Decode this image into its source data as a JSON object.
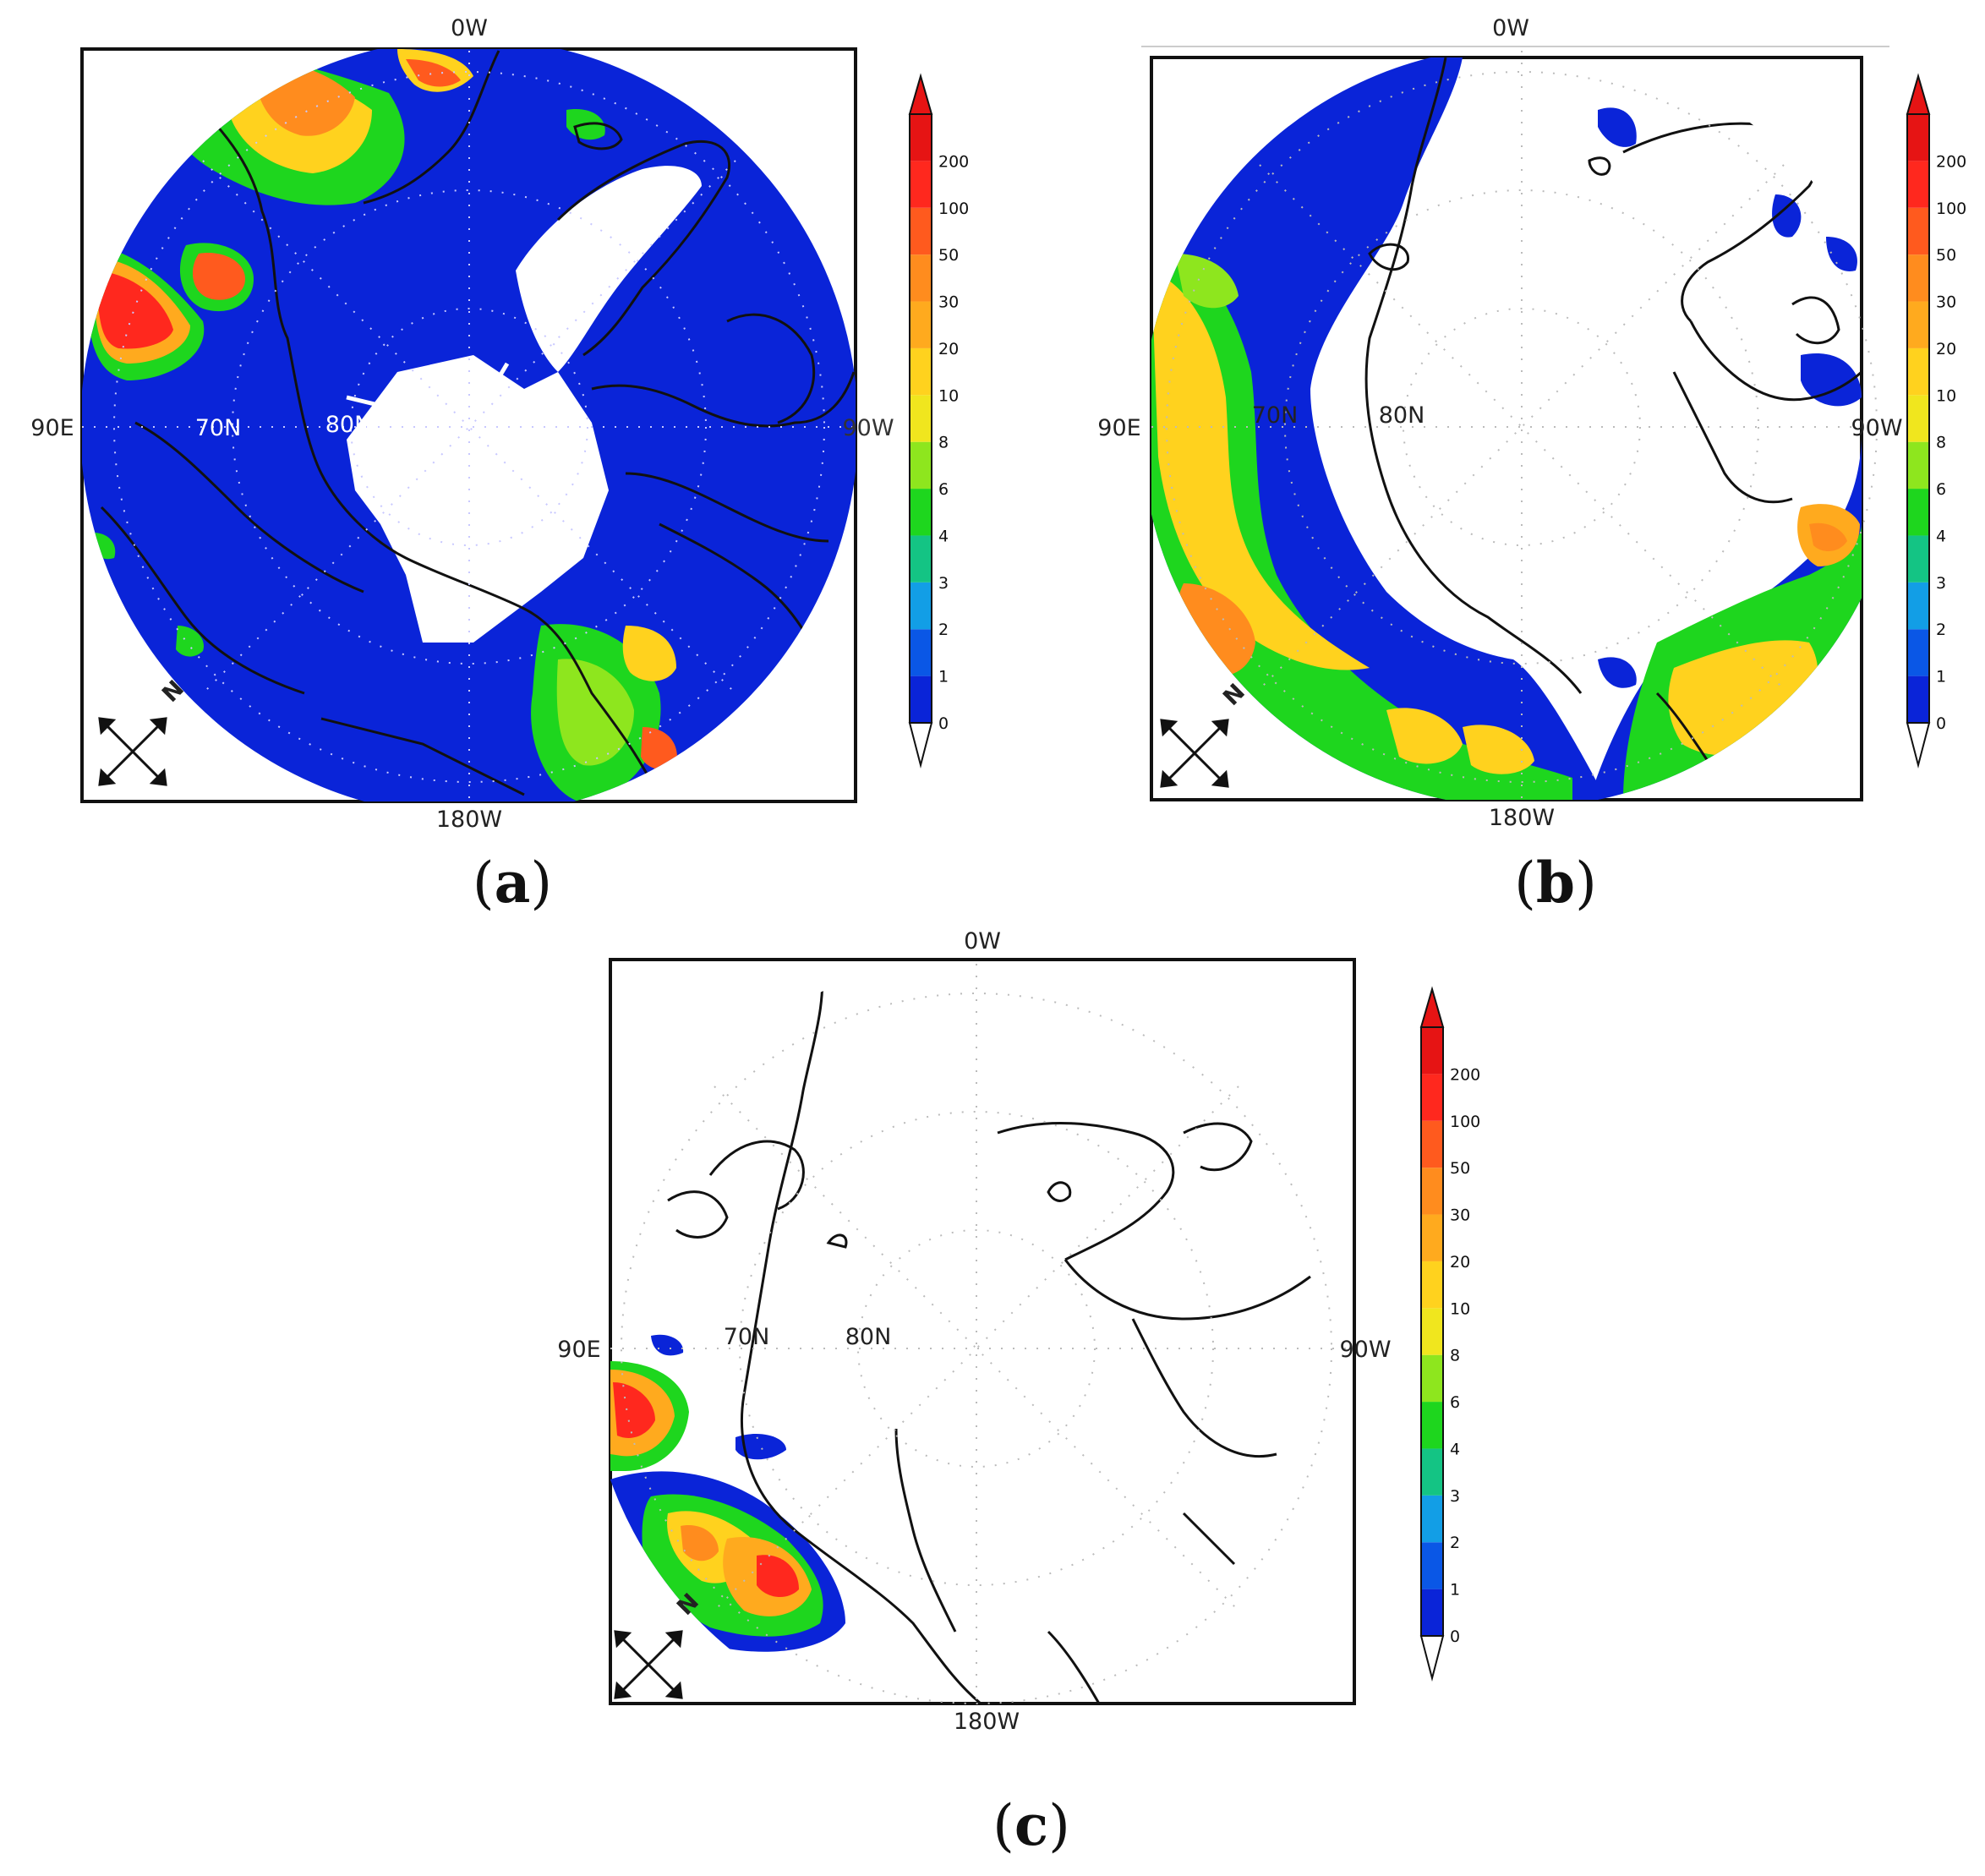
{
  "colorbar": {
    "levels": [
      "0",
      "1",
      "2",
      "3",
      "4",
      "6",
      "8",
      "10",
      "20",
      "30",
      "50",
      "100",
      "200"
    ],
    "colors": [
      "#0a24d8",
      "#0a57e6",
      "#129ee6",
      "#14c484",
      "#1ed61e",
      "#8ee61e",
      "#f0e61e",
      "#ffd21e",
      "#ffaa1e",
      "#ff8c1e",
      "#ff5a1e",
      "#ff281e",
      "#e61414"
    ]
  },
  "panels": [
    {
      "id": "a",
      "caption_letter": "a",
      "labels": {
        "top": "0W",
        "bottom": "180W",
        "left": "90E",
        "right": "90W",
        "lat70": "70N",
        "lat80": "80N"
      },
      "compass": {
        "letter": "N"
      }
    },
    {
      "id": "b",
      "caption_letter": "b",
      "labels": {
        "top": "0W",
        "bottom": "180W",
        "left": "90E",
        "right": "90W",
        "lat70": "70N",
        "lat80": "80N"
      },
      "compass": {
        "letter": "N"
      }
    },
    {
      "id": "c",
      "caption_letter": "c",
      "labels": {
        "top": "0W",
        "bottom": "180W",
        "left": "90E",
        "right": "90W",
        "lat70": "70N",
        "lat80": "80N"
      },
      "compass": {
        "letter": "N"
      }
    }
  ]
}
